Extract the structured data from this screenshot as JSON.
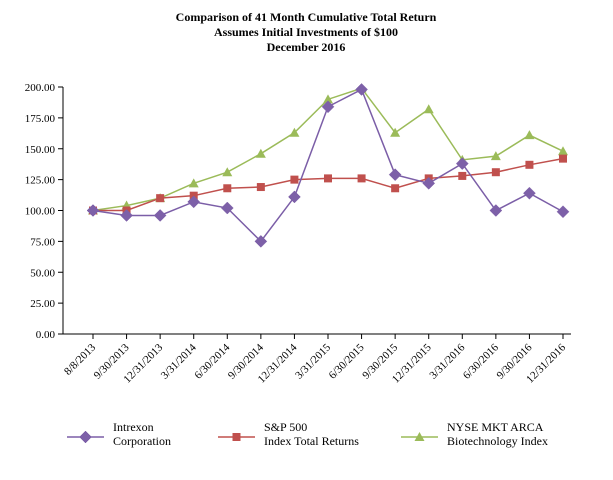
{
  "colors": {
    "intrexon": "#7b5ea7",
    "intrexon_marker": "#7d60a8",
    "sp500": "#c0504d",
    "nyse": "#9bbb59",
    "axis": "#000000"
  },
  "chart_data": {
    "type": "line",
    "title_lines": [
      "Comparison of 41 Month Cumulative Total Return",
      "Assumes Initial Investments of $100",
      "December 2016"
    ],
    "categories": [
      "8/8/2013",
      "9/30/2013",
      "12/31/2013",
      "3/31/2014",
      "6/30/2014",
      "9/30/2014",
      "12/31/2014",
      "3/31/2015",
      "6/30/2015",
      "9/30/2015",
      "12/31/2015",
      "3/31/2016",
      "6/30/2016",
      "9/30/2016",
      "12/31/2016"
    ],
    "ylim": [
      0,
      200
    ],
    "yticks": [
      "0.00",
      "25.00",
      "50.00",
      "75.00",
      "100.00",
      "125.00",
      "150.00",
      "175.00",
      "200.00"
    ],
    "ytick_values": [
      0,
      25,
      50,
      75,
      100,
      125,
      150,
      175,
      200
    ],
    "series": [
      {
        "name": "Intrexon Corporation",
        "legend_lines": [
          "Intrexon",
          "Corporation"
        ],
        "marker": "diamond",
        "values": [
          100,
          96,
          96,
          107,
          102,
          75,
          111,
          184,
          198,
          129,
          122,
          138,
          100,
          114,
          99
        ]
      },
      {
        "name": "S&P 500 Index Total Returns",
        "legend_lines": [
          "S&P 500",
          "Index Total Returns"
        ],
        "marker": "square",
        "values": [
          100,
          100,
          110,
          112,
          118,
          119,
          125,
          126,
          126,
          118,
          126,
          128,
          131,
          137,
          142
        ]
      },
      {
        "name": "NYSE MKT ARCA Biotechnology Index",
        "legend_lines": [
          "NYSE MKT ARCA",
          "Biotechnology Index"
        ],
        "marker": "triangle",
        "values": [
          100,
          104,
          110,
          122,
          131,
          146,
          163,
          190,
          199,
          163,
          182,
          141,
          144,
          161,
          148
        ]
      }
    ]
  }
}
